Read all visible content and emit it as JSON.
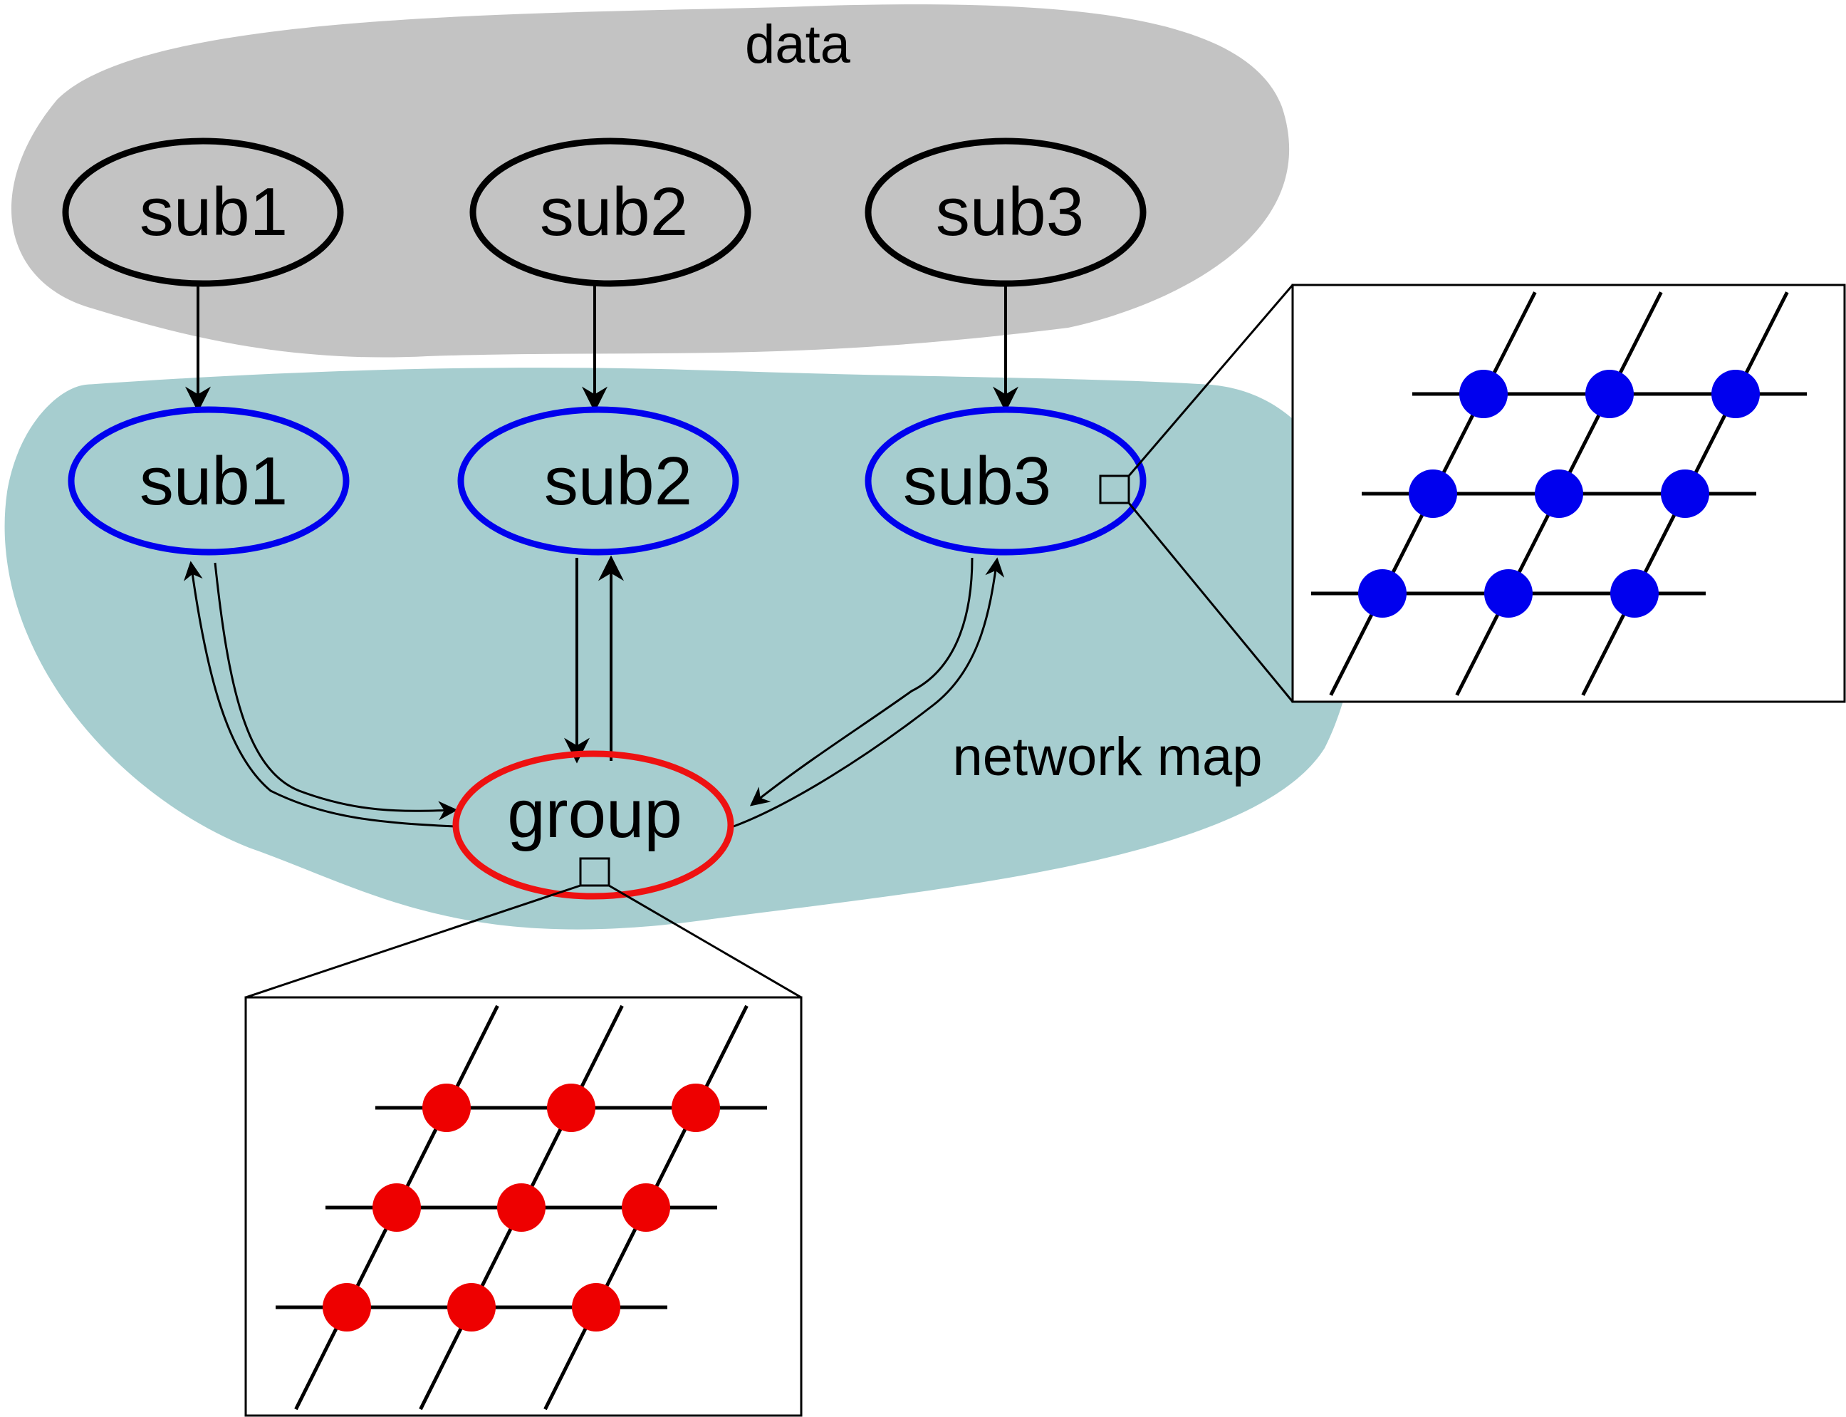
{
  "regions": {
    "data": {
      "label": "data",
      "color": "#c3c3c3"
    },
    "network_map": {
      "label": "network map",
      "color": "#a6cdcf"
    }
  },
  "nodes": {
    "data_sub1": {
      "label": "sub1",
      "stroke": "#000000"
    },
    "data_sub2": {
      "label": "sub2",
      "stroke": "#000000"
    },
    "data_sub3": {
      "label": "sub3",
      "stroke": "#000000"
    },
    "net_sub1": {
      "label": "sub1",
      "stroke": "#0000ee"
    },
    "net_sub2": {
      "label": "sub2",
      "stroke": "#0000ee"
    },
    "net_sub3": {
      "label": "sub3",
      "stroke": "#0000ee"
    },
    "group": {
      "label": "group",
      "stroke": "#ee1111"
    }
  },
  "edges": [
    {
      "from": "data_sub1",
      "to": "net_sub1"
    },
    {
      "from": "data_sub2",
      "to": "net_sub2"
    },
    {
      "from": "data_sub3",
      "to": "net_sub3"
    },
    {
      "from": "net_sub1",
      "to": "group"
    },
    {
      "from": "group",
      "to": "net_sub1"
    },
    {
      "from": "net_sub2",
      "to": "group"
    },
    {
      "from": "group",
      "to": "net_sub2"
    },
    {
      "from": "net_sub3",
      "to": "group"
    },
    {
      "from": "group",
      "to": "net_sub3"
    }
  ],
  "insets": {
    "sub3_lattice": {
      "node_color": "#0000ee",
      "rows": 3,
      "cols": 3
    },
    "group_lattice": {
      "node_color": "#ee0000",
      "rows": 3,
      "cols": 3
    }
  }
}
